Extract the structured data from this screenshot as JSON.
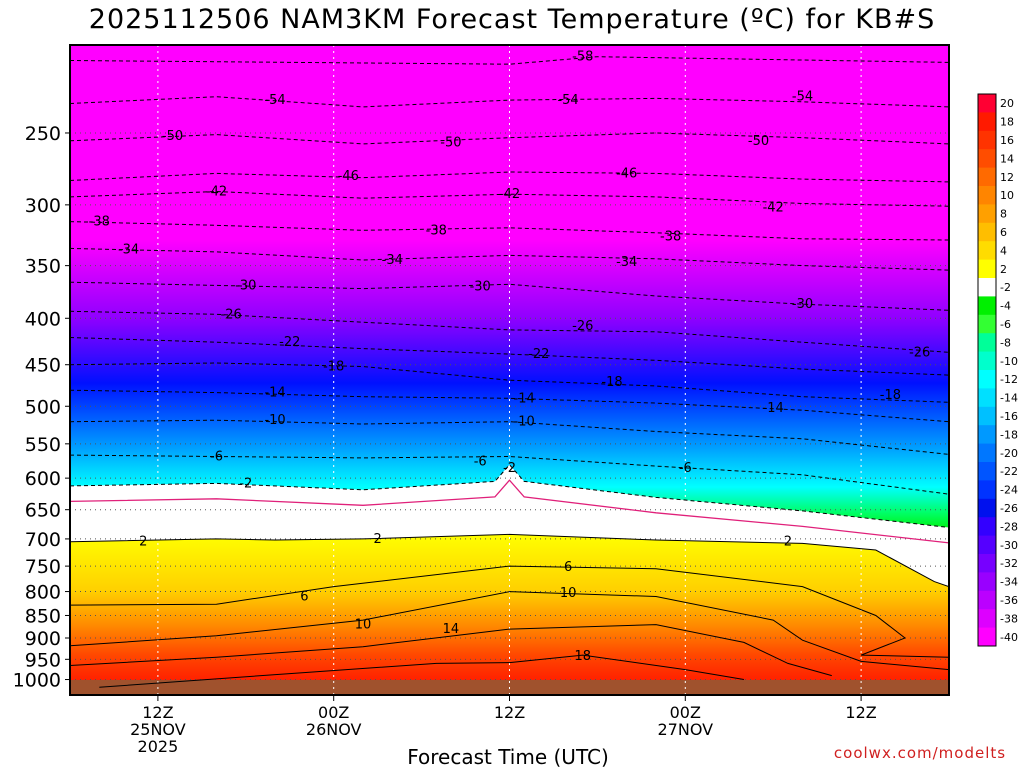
{
  "title": "2025112506 NAM3KM Forecast Temperature (ºC) for KB#S",
  "xlabel": "Forecast Time (UTC)",
  "credit": "coolwx.com/modelts",
  "chart_data": {
    "type": "heatmap",
    "title": "2025112506 NAM3KM Forecast Temperature (ºC) for KB#S",
    "xlabel": "Forecast Time (UTC)",
    "ylabel": "",
    "x_range_hours": [
      0,
      60
    ],
    "y_range_hpa": [
      1040,
      200
    ],
    "y_scale": "log",
    "y_ticks": [
      {
        "v": 250,
        "label": "250"
      },
      {
        "v": 300,
        "label": "300"
      },
      {
        "v": 350,
        "label": "350"
      },
      {
        "v": 400,
        "label": "400"
      },
      {
        "v": 450,
        "label": "450"
      },
      {
        "v": 500,
        "label": "500"
      },
      {
        "v": 550,
        "label": "550"
      },
      {
        "v": 600,
        "label": "600"
      },
      {
        "v": 650,
        "label": "650"
      },
      {
        "v": 700,
        "label": "700"
      },
      {
        "v": 750,
        "label": "750"
      },
      {
        "v": 800,
        "label": "800"
      },
      {
        "v": 850,
        "label": "850"
      },
      {
        "v": 900,
        "label": "900"
      },
      {
        "v": 950,
        "label": "950"
      },
      {
        "v": 1000,
        "label": "1000"
      }
    ],
    "x_ticks": [
      {
        "h": 6,
        "lines": [
          "12Z",
          "25NOV",
          "2025"
        ]
      },
      {
        "h": 18,
        "lines": [
          "00Z",
          "26NOV"
        ]
      },
      {
        "h": 30,
        "lines": [
          "12Z"
        ]
      },
      {
        "h": 42,
        "lines": [
          "00Z",
          "27NOV"
        ]
      },
      {
        "h": 54,
        "lines": [
          "12Z"
        ]
      }
    ],
    "grid": true,
    "legend": "right",
    "colorbar_labels": [
      "20",
      "18",
      "16",
      "14",
      "12",
      "10",
      "8",
      "6",
      "4",
      "2",
      "-2",
      "-4",
      "-6",
      "-8",
      "-10",
      "-12",
      "-14",
      "-16",
      "-18",
      "-20",
      "-22",
      "-24",
      "-26",
      "-28",
      "-30",
      "-32",
      "-34",
      "-36",
      "-38",
      "-40"
    ],
    "colorbar_colors": [
      "#ff0033",
      "#ff1a00",
      "#ff3300",
      "#ff4d00",
      "#ff6a00",
      "#ff8500",
      "#ffa000",
      "#ffbe00",
      "#ffdc00",
      "#ffff00",
      "#ffffff",
      "#00f000",
      "#33ff33",
      "#00ff99",
      "#00ffcc",
      "#00ffff",
      "#00e0ff",
      "#00c0ff",
      "#0099ff",
      "#0077ff",
      "#0055ff",
      "#0033ff",
      "#0011ee",
      "#3300ff",
      "#5500ff",
      "#7700ff",
      "#9900ff",
      "#bb00ff",
      "#dd00ff",
      "#ff00ff"
    ],
    "isotherms": [
      {
        "t": -58,
        "p": [
          [
            0,
            208
          ],
          [
            30,
            210
          ],
          [
            36,
            206
          ],
          [
            44,
            207
          ],
          [
            60,
            209
          ]
        ],
        "labels": [
          [
            35,
            206
          ]
        ]
      },
      {
        "t": -54,
        "p": [
          [
            0,
            232
          ],
          [
            10,
            228
          ],
          [
            20,
            234
          ],
          [
            30,
            230
          ],
          [
            40,
            229
          ],
          [
            50,
            231
          ],
          [
            60,
            234
          ]
        ],
        "labels": [
          [
            14,
            230
          ],
          [
            34,
            230
          ],
          [
            50,
            228
          ]
        ]
      },
      {
        "t": -50,
        "p": [
          [
            0,
            255
          ],
          [
            10,
            251
          ],
          [
            20,
            257
          ],
          [
            30,
            253
          ],
          [
            40,
            250
          ],
          [
            50,
            253
          ],
          [
            60,
            257
          ]
        ],
        "labels": [
          [
            7,
            252
          ],
          [
            26,
            256
          ],
          [
            47,
            255
          ]
        ]
      },
      {
        "t": -46,
        "p": [
          [
            0,
            282
          ],
          [
            10,
            277
          ],
          [
            20,
            280
          ],
          [
            30,
            276
          ],
          [
            40,
            277
          ],
          [
            50,
            281
          ],
          [
            60,
            283
          ]
        ],
        "labels": [
          [
            19,
            279
          ],
          [
            38,
            277
          ]
        ]
      },
      {
        "t": -42,
        "p": [
          [
            0,
            294
          ],
          [
            10,
            290
          ],
          [
            20,
            295
          ],
          [
            30,
            292
          ],
          [
            40,
            294
          ],
          [
            50,
            299
          ],
          [
            60,
            301
          ]
        ],
        "labels": [
          [
            10,
            290
          ],
          [
            30,
            292
          ],
          [
            48,
            302
          ]
        ]
      },
      {
        "t": -38,
        "p": [
          [
            0,
            313
          ],
          [
            10,
            316
          ],
          [
            20,
            320
          ],
          [
            30,
            318
          ],
          [
            40,
            322
          ],
          [
            50,
            327
          ],
          [
            60,
            328
          ]
        ],
        "labels": [
          [
            2,
            313
          ],
          [
            25,
            320
          ],
          [
            41,
            325
          ]
        ]
      },
      {
        "t": -34,
        "p": [
          [
            0,
            335
          ],
          [
            10,
            338
          ],
          [
            20,
            345
          ],
          [
            30,
            341
          ],
          [
            40,
            344
          ],
          [
            50,
            350
          ],
          [
            60,
            354
          ]
        ],
        "labels": [
          [
            4,
            336
          ],
          [
            22,
            345
          ],
          [
            38,
            347
          ]
        ]
      },
      {
        "t": -30,
        "p": [
          [
            0,
            365
          ],
          [
            10,
            368
          ],
          [
            20,
            371
          ],
          [
            30,
            367
          ],
          [
            40,
            378
          ],
          [
            50,
            386
          ],
          [
            60,
            392
          ]
        ],
        "labels": [
          [
            12,
            368
          ],
          [
            28,
            369
          ],
          [
            50,
            386
          ]
        ]
      },
      {
        "t": -26,
        "p": [
          [
            0,
            393
          ],
          [
            10,
            396
          ],
          [
            20,
            404
          ],
          [
            30,
            412
          ],
          [
            40,
            414
          ],
          [
            50,
            425
          ],
          [
            60,
            436
          ]
        ],
        "labels": [
          [
            11,
            396
          ],
          [
            35,
            408
          ],
          [
            58,
            436
          ]
        ]
      },
      {
        "t": -22,
        "p": [
          [
            0,
            420
          ],
          [
            10,
            425
          ],
          [
            20,
            432
          ],
          [
            30,
            438
          ],
          [
            40,
            445
          ],
          [
            50,
            455
          ],
          [
            60,
            462
          ]
        ],
        "labels": [
          [
            15,
            425
          ],
          [
            32,
            438
          ]
        ]
      },
      {
        "t": -18,
        "p": [
          [
            0,
            450
          ],
          [
            10,
            448
          ],
          [
            20,
            452
          ],
          [
            30,
            468
          ],
          [
            40,
            475
          ],
          [
            50,
            488
          ],
          [
            60,
            495
          ]
        ],
        "labels": [
          [
            18,
            452
          ],
          [
            37,
            470
          ],
          [
            56,
            486
          ]
        ]
      },
      {
        "t": -14,
        "p": [
          [
            0,
            480
          ],
          [
            10,
            483
          ],
          [
            20,
            488
          ],
          [
            30,
            490
          ],
          [
            40,
            496
          ],
          [
            50,
            505
          ],
          [
            60,
            520
          ]
        ],
        "labels": [
          [
            14,
            483
          ],
          [
            31,
            490
          ],
          [
            48,
            502
          ]
        ]
      },
      {
        "t": -10,
        "p": [
          [
            0,
            520
          ],
          [
            10,
            518
          ],
          [
            20,
            523
          ],
          [
            30,
            520
          ],
          [
            40,
            533
          ],
          [
            50,
            543
          ],
          [
            60,
            565
          ]
        ],
        "labels": [
          [
            14,
            518
          ],
          [
            31,
            520
          ]
        ]
      },
      {
        "t": -6,
        "p": [
          [
            0,
            566
          ],
          [
            10,
            568
          ],
          [
            20,
            570
          ],
          [
            30,
            568
          ],
          [
            40,
            582
          ],
          [
            50,
            595
          ],
          [
            60,
            625
          ]
        ],
        "labels": [
          [
            10,
            568
          ],
          [
            28,
            575
          ],
          [
            42,
            585
          ]
        ]
      },
      {
        "t": -2,
        "p": [
          [
            0,
            612
          ],
          [
            10,
            608
          ],
          [
            20,
            618
          ],
          [
            29,
            605
          ],
          [
            30,
            580
          ],
          [
            31,
            605
          ],
          [
            40,
            630
          ],
          [
            50,
            652
          ],
          [
            60,
            680
          ]
        ],
        "labels": [
          [
            12,
            608
          ],
          [
            30,
            585
          ]
        ]
      },
      {
        "t": 2,
        "p": [
          [
            0,
            705
          ],
          [
            10,
            700
          ],
          [
            14,
            702
          ],
          [
            20,
            700
          ],
          [
            30,
            692
          ],
          [
            40,
            702
          ],
          [
            50,
            708
          ],
          [
            55,
            720
          ],
          [
            59,
            780
          ],
          [
            60,
            790
          ]
        ],
        "labels": [
          [
            5,
            705
          ],
          [
            21,
            700
          ],
          [
            49,
            705
          ]
        ]
      },
      {
        "t": 6,
        "p": [
          [
            0,
            828
          ],
          [
            10,
            826
          ],
          [
            18,
            790
          ],
          [
            30,
            750
          ],
          [
            40,
            755
          ],
          [
            50,
            790
          ],
          [
            55,
            850
          ],
          [
            57,
            900
          ],
          [
            54,
            940
          ],
          [
            60,
            945
          ]
        ],
        "labels": [
          [
            16,
            810
          ],
          [
            34,
            752
          ]
        ]
      },
      {
        "t": 10,
        "p": [
          [
            0,
            918
          ],
          [
            10,
            895
          ],
          [
            20,
            860
          ],
          [
            30,
            800
          ],
          [
            40,
            810
          ],
          [
            48,
            860
          ],
          [
            50,
            905
          ],
          [
            54,
            955
          ],
          [
            60,
            975
          ]
        ],
        "labels": [
          [
            20,
            870
          ],
          [
            34,
            803
          ]
        ]
      },
      {
        "t": 14,
        "p": [
          [
            0,
            965
          ],
          [
            10,
            945
          ],
          [
            20,
            920
          ],
          [
            30,
            880
          ],
          [
            40,
            870
          ],
          [
            46,
            910
          ],
          [
            49,
            960
          ],
          [
            52,
            990
          ]
        ],
        "labels": [
          [
            26,
            880
          ]
        ]
      },
      {
        "t": 18,
        "p": [
          [
            2,
            1020
          ],
          [
            15,
            985
          ],
          [
            25,
            960
          ],
          [
            30,
            958
          ],
          [
            35,
            940
          ],
          [
            42,
            975
          ],
          [
            46,
            1000
          ]
        ],
        "labels": [
          [
            35,
            942
          ]
        ]
      }
    ]
  }
}
